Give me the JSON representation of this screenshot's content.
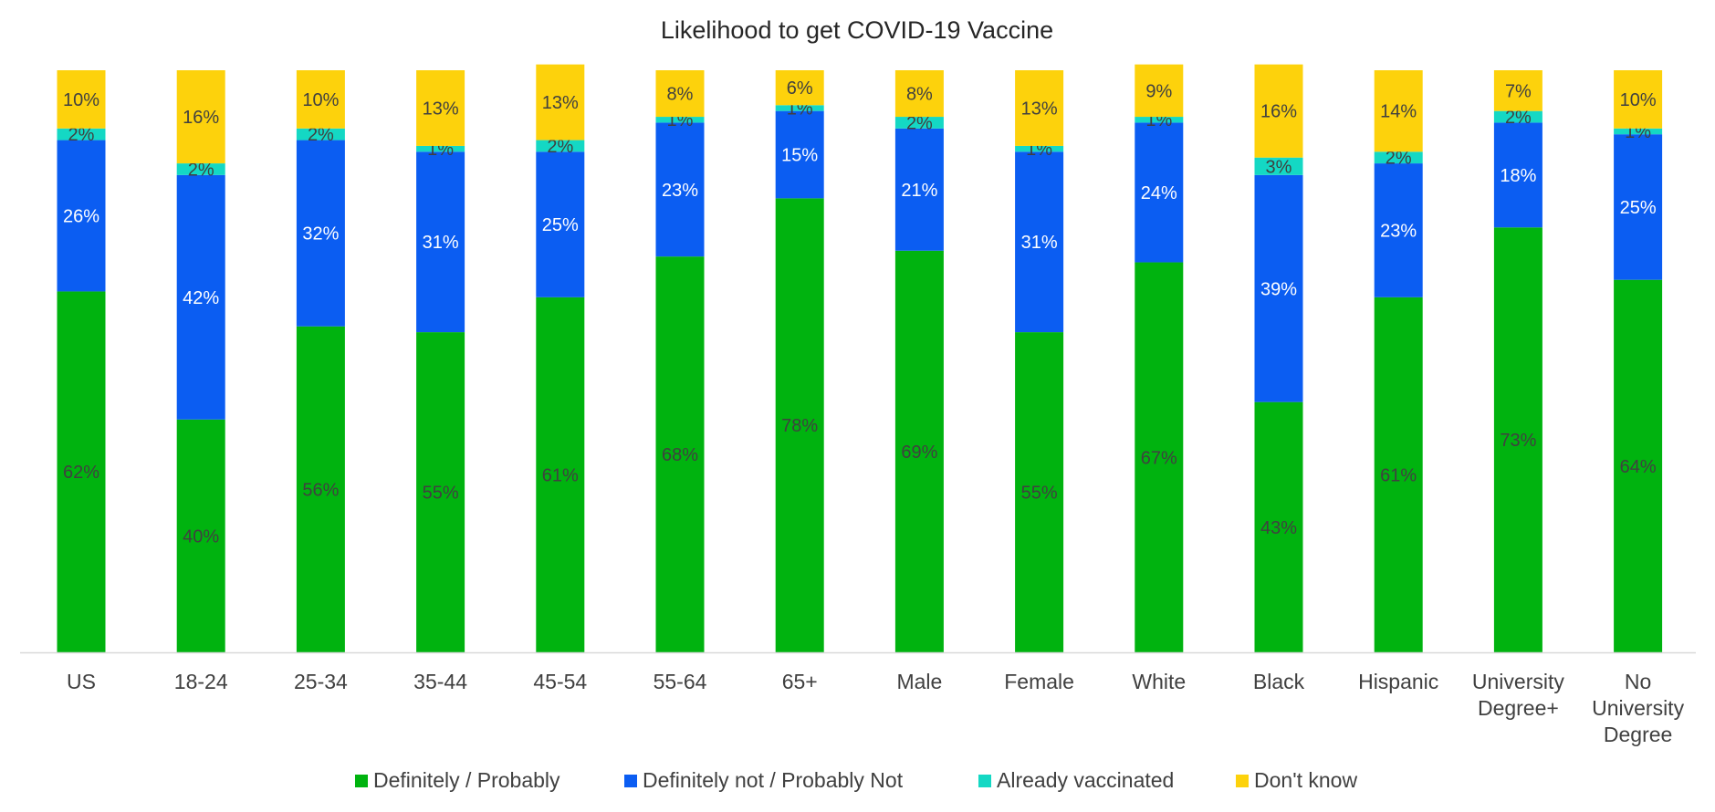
{
  "chart_data": {
    "type": "bar",
    "stacked": true,
    "title": "Likelihood to get COVID-19 Vaccine",
    "xlabel": "",
    "ylabel": "",
    "categories": [
      [
        "US"
      ],
      [
        "18-24"
      ],
      [
        "25-34"
      ],
      [
        "35-44"
      ],
      [
        "45-54"
      ],
      [
        "55-64"
      ],
      [
        "65+"
      ],
      [
        "Male"
      ],
      [
        "Female"
      ],
      [
        "White"
      ],
      [
        "Black"
      ],
      [
        "Hispanic"
      ],
      [
        "University",
        "Degree+"
      ],
      [
        "No",
        "University",
        "Degree"
      ]
    ],
    "series": [
      {
        "name": "Definitely / Probably",
        "color": "#00b30f",
        "label_color": "#404040",
        "values": [
          62,
          40,
          56,
          55,
          61,
          68,
          78,
          69,
          55,
          67,
          43,
          61,
          73,
          64
        ]
      },
      {
        "name": "Definitely not / Probably Not",
        "color": "#0b5df2",
        "label_color": "#ffffff",
        "values": [
          26,
          42,
          32,
          31,
          25,
          23,
          15,
          21,
          31,
          24,
          39,
          23,
          18,
          25
        ]
      },
      {
        "name": "Already vaccinated",
        "color": "#14d8c4",
        "label_color": "#404040",
        "values": [
          2,
          2,
          2,
          1,
          2,
          1,
          1,
          2,
          1,
          1,
          3,
          2,
          2,
          1
        ]
      },
      {
        "name": "Don't know",
        "color": "#fdd20c",
        "label_color": "#404040",
        "values": [
          10,
          16,
          10,
          13,
          13,
          8,
          6,
          8,
          13,
          9,
          16,
          14,
          7,
          10
        ]
      }
    ],
    "value_suffix": "%",
    "ylim": [
      0,
      100
    ],
    "grid": false,
    "legend": "bottom",
    "axis_color": "#d9d9d9"
  }
}
